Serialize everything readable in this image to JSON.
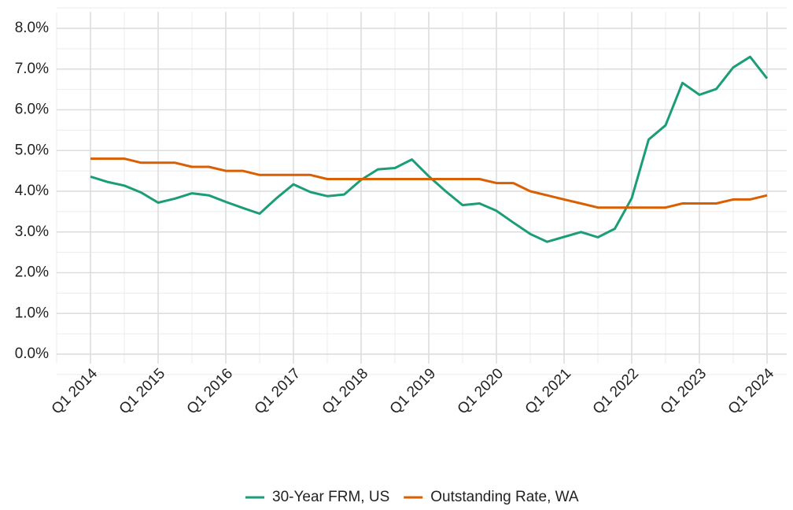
{
  "chart_data": {
    "type": "line",
    "categories": [
      "Q1 2014",
      null,
      null,
      null,
      "Q1 2015",
      null,
      null,
      null,
      "Q1 2016",
      null,
      null,
      null,
      "Q1 2017",
      null,
      null,
      null,
      "Q1 2018",
      null,
      null,
      null,
      "Q1 2019",
      null,
      null,
      null,
      "Q1 2020",
      null,
      null,
      null,
      "Q1 2021",
      null,
      null,
      null,
      "Q1 2022",
      null,
      null,
      null,
      "Q1 2023",
      null,
      null,
      null,
      "Q1 2024"
    ],
    "series": [
      {
        "name": "30-Year FRM, US",
        "color": "#1b9e77",
        "values": [
          4.36,
          4.23,
          4.14,
          3.97,
          3.72,
          3.82,
          3.95,
          3.9,
          3.74,
          3.59,
          3.45,
          3.83,
          4.17,
          3.98,
          3.88,
          3.92,
          4.28,
          4.54,
          4.57,
          4.78,
          4.37,
          4.0,
          3.66,
          3.7,
          3.52,
          3.23,
          2.95,
          2.76,
          2.88,
          3.0,
          2.87,
          3.08,
          3.83,
          5.27,
          5.62,
          6.66,
          6.37,
          6.51,
          7.04,
          7.3,
          6.77
        ]
      },
      {
        "name": "Outstanding Rate, WA",
        "color": "#d95f02",
        "values": [
          4.8,
          4.8,
          4.8,
          4.7,
          4.7,
          4.7,
          4.6,
          4.6,
          4.5,
          4.5,
          4.4,
          4.4,
          4.4,
          4.4,
          4.3,
          4.3,
          4.3,
          4.3,
          4.3,
          4.3,
          4.3,
          4.3,
          4.3,
          4.3,
          4.2,
          4.2,
          4.0,
          3.9,
          3.8,
          3.7,
          3.6,
          3.6,
          3.6,
          3.6,
          3.6,
          3.7,
          3.7,
          3.7,
          3.8,
          3.8,
          3.9
        ]
      }
    ],
    "ylim": [
      0,
      8
    ],
    "yticks": [
      {
        "value": 0,
        "label": "0.0%"
      },
      {
        "value": 1,
        "label": "1.0%"
      },
      {
        "value": 2,
        "label": "2.0%"
      },
      {
        "value": 3,
        "label": "3.0%"
      },
      {
        "value": 4,
        "label": "4.0%"
      },
      {
        "value": 5,
        "label": "5.0%"
      },
      {
        "value": 6,
        "label": "6.0%"
      },
      {
        "value": 7,
        "label": "7.0%"
      },
      {
        "value": 8,
        "label": "8.0%"
      }
    ],
    "grid": true,
    "legend": "bottom"
  }
}
